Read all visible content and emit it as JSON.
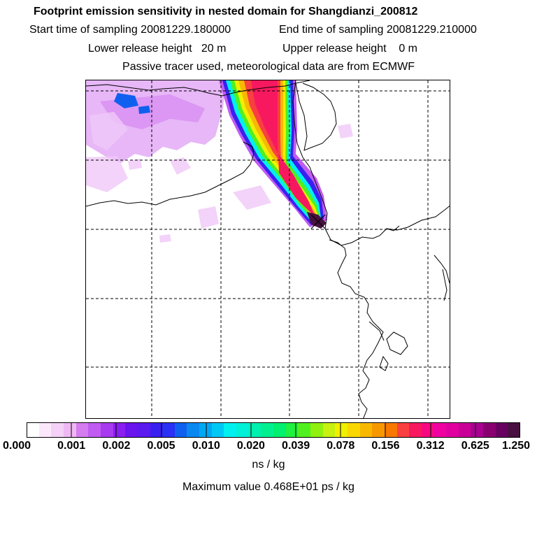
{
  "header": {
    "title": "Footprint emission sensitivity in nested domain for Shangdianzi_200812",
    "start_label": "Start time of sampling 20081229.180000",
    "end_label": "End time of sampling 20081229.210000",
    "lower_label": "Lower release height   20 m",
    "upper_label": "Upper release height    0 m",
    "tracer_label": "Passive tracer used, meteorological data are from ECMWF"
  },
  "colorbar": {
    "tick_labels": [
      "0.000",
      "0.001",
      "0.002",
      "0.005",
      "0.010",
      "0.020",
      "0.039",
      "0.078",
      "0.156",
      "0.312",
      "0.625",
      "1.250"
    ],
    "colors": [
      "#ffffff",
      "#fbe8fb",
      "#f5d0f7",
      "#efb8f4",
      "#d47cf0",
      "#c05cf2",
      "#a83af0",
      "#8a1ef0",
      "#6a14ee",
      "#5a1af0",
      "#3a20f0",
      "#2a30f4",
      "#1060f0",
      "#0a88f0",
      "#00a8f4",
      "#00c8f4",
      "#00f0f0",
      "#00f0d8",
      "#00f0b0",
      "#00f090",
      "#00f070",
      "#20f040",
      "#50f020",
      "#90f010",
      "#c8f010",
      "#f0f000",
      "#f8d800",
      "#f8b800",
      "#f89800",
      "#f87800",
      "#f84040",
      "#f81860",
      "#f80880",
      "#f000a0",
      "#e000a0",
      "#c80098",
      "#a80090",
      "#880070",
      "#680060",
      "#481040"
    ],
    "units": "ns / kg"
  },
  "max_value": "Maximum value  0.468E+01 ps / kg",
  "map": {
    "station_marker": "Shangdianzi station marker",
    "plume_colors": [
      "#c05cf2",
      "#3a20f0",
      "#00f0f0",
      "#50f020",
      "#f0f000",
      "#f8b800",
      "#f84040",
      "#f81860",
      "#481040"
    ],
    "haze_color": "#d47cf0",
    "haze_light": "#f0c8f8",
    "dark_blob_color": "#1060f0"
  }
}
